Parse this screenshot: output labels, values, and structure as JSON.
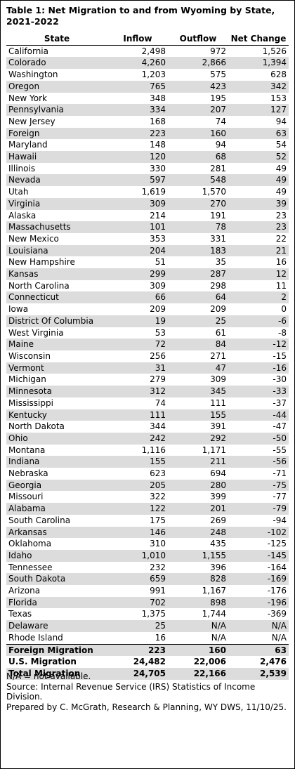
{
  "title": "Table 1: Net Migration to and from Wyoming by State, 2021-2022",
  "headers": [
    "State",
    "Inflow",
    "Outflow",
    "Net Change"
  ],
  "rows": [
    [
      "California",
      "2,498",
      "972",
      "1,526"
    ],
    [
      "Colorado",
      "4,260",
      "2,866",
      "1,394"
    ],
    [
      "Washington",
      "1,203",
      "575",
      "628"
    ],
    [
      "Oregon",
      "765",
      "423",
      "342"
    ],
    [
      "New York",
      "348",
      "195",
      "153"
    ],
    [
      "Pennsylvania",
      "334",
      "207",
      "127"
    ],
    [
      "New Jersey",
      "168",
      "74",
      "94"
    ],
    [
      "Foreign",
      "223",
      "160",
      "63"
    ],
    [
      "Maryland",
      "148",
      "94",
      "54"
    ],
    [
      "Hawaii",
      "120",
      "68",
      "52"
    ],
    [
      "Illinois",
      "330",
      "281",
      "49"
    ],
    [
      "Nevada",
      "597",
      "548",
      "49"
    ],
    [
      "Utah",
      "1,619",
      "1,570",
      "49"
    ],
    [
      "Virginia",
      "309",
      "270",
      "39"
    ],
    [
      "Alaska",
      "214",
      "191",
      "23"
    ],
    [
      "Massachusetts",
      "101",
      "78",
      "23"
    ],
    [
      "New Mexico",
      "353",
      "331",
      "22"
    ],
    [
      "Louisiana",
      "204",
      "183",
      "21"
    ],
    [
      "New Hampshire",
      "51",
      "35",
      "16"
    ],
    [
      "Kansas",
      "299",
      "287",
      "12"
    ],
    [
      "North Carolina",
      "309",
      "298",
      "11"
    ],
    [
      "Connecticut",
      "66",
      "64",
      "2"
    ],
    [
      "Iowa",
      "209",
      "209",
      "0"
    ],
    [
      "District Of Columbia",
      "19",
      "25",
      "-6"
    ],
    [
      "West Virginia",
      "53",
      "61",
      "-8"
    ],
    [
      "Maine",
      "72",
      "84",
      "-12"
    ],
    [
      "Wisconsin",
      "256",
      "271",
      "-15"
    ],
    [
      "Vermont",
      "31",
      "47",
      "-16"
    ],
    [
      "Michigan",
      "279",
      "309",
      "-30"
    ],
    [
      "Minnesota",
      "312",
      "345",
      "-33"
    ],
    [
      "Mississippi",
      "74",
      "111",
      "-37"
    ],
    [
      "Kentucky",
      "111",
      "155",
      "-44"
    ],
    [
      "North Dakota",
      "344",
      "391",
      "-47"
    ],
    [
      "Ohio",
      "242",
      "292",
      "-50"
    ],
    [
      "Montana",
      "1,116",
      "1,171",
      "-55"
    ],
    [
      "Indiana",
      "155",
      "211",
      "-56"
    ],
    [
      "Nebraska",
      "623",
      "694",
      "-71"
    ],
    [
      "Georgia",
      "205",
      "280",
      "-75"
    ],
    [
      "Missouri",
      "322",
      "399",
      "-77"
    ],
    [
      "Alabama",
      "122",
      "201",
      "-79"
    ],
    [
      "South Carolina",
      "175",
      "269",
      "-94"
    ],
    [
      "Arkansas",
      "146",
      "248",
      "-102"
    ],
    [
      "Oklahoma",
      "310",
      "435",
      "-125"
    ],
    [
      "Idaho",
      "1,010",
      "1,155",
      "-145"
    ],
    [
      "Tennessee",
      "232",
      "396",
      "-164"
    ],
    [
      "South Dakota",
      "659",
      "828",
      "-169"
    ],
    [
      "Arizona",
      "991",
      "1,167",
      "-176"
    ],
    [
      "Florida",
      "702",
      "898",
      "-196"
    ],
    [
      "Texas",
      "1,375",
      "1,744",
      "-369"
    ],
    [
      "Delaware",
      "25",
      "N/A",
      "N/A"
    ],
    [
      "Rhode Island",
      "16",
      "N/A",
      "N/A"
    ]
  ],
  "totals": [
    [
      "Foreign Migration",
      "223",
      "160",
      "63"
    ],
    [
      "U.S. Migration",
      "24,482",
      "22,006",
      "2,476"
    ],
    [
      "Total Migration",
      "24,705",
      "22,166",
      "2,539"
    ]
  ],
  "notes": [
    "N/A = not available.",
    "Source: Internal Revenue Service (IRS) Statistics of Income Division.",
    "Prepared by C. McGrath, Research & Planning, WY DWS, 11/10/25."
  ],
  "colors": {
    "stripe": "#dcdcdc",
    "border": "#000000",
    "text": "#000000"
  }
}
